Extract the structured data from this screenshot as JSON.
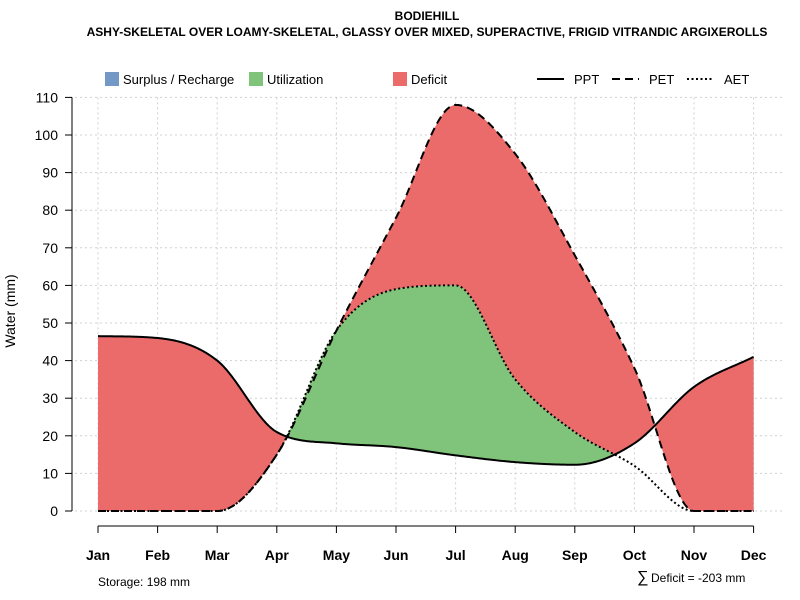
{
  "chart_data": {
    "type": "area",
    "title": "BODIEHILL",
    "subtitle": "ASHY-SKELETAL OVER LOAMY-SKELETAL, GLASSY OVER MIXED, SUPERACTIVE, FRIGID VITRANDIC ARGIXEROLLS",
    "ylabel": "Water (mm)",
    "xlabel": "",
    "ylim": [
      0,
      110
    ],
    "yticks": [
      0,
      10,
      20,
      30,
      40,
      50,
      60,
      70,
      80,
      90,
      100,
      110
    ],
    "grid": true,
    "categories": [
      "Jan",
      "Feb",
      "Mar",
      "Apr",
      "May",
      "Jun",
      "Jul",
      "Aug",
      "Sep",
      "Oct",
      "Nov",
      "Dec"
    ],
    "series": [
      {
        "name": "PPT",
        "line_style": "solid",
        "values": [
          46.5,
          46.0,
          40.0,
          21.0,
          18.0,
          17.0,
          14.8,
          13.0,
          12.3,
          18.0,
          33.0,
          41.0
        ]
      },
      {
        "name": "PET",
        "line_style": "dashed",
        "values": [
          0.0,
          0.0,
          0.0,
          15.0,
          48.0,
          78.0,
          108.0,
          95.0,
          68.0,
          38.0,
          0.0,
          0.0
        ]
      },
      {
        "name": "AET",
        "line_style": "dotted",
        "values": [
          0.0,
          0.0,
          0.0,
          15.0,
          48.0,
          59.0,
          60.0,
          35.0,
          21.0,
          12.0,
          0.0,
          0.0
        ]
      }
    ],
    "legend": [
      {
        "label": "Surplus / Recharge",
        "kind": "fill",
        "color": "#7498C6"
      },
      {
        "label": "Utilization",
        "kind": "fill",
        "color": "#7FC47A"
      },
      {
        "label": "Deficit",
        "kind": "fill",
        "color": "#EB6B6B"
      },
      {
        "label": "PPT",
        "kind": "line",
        "style": "solid"
      },
      {
        "label": "PET",
        "kind": "line",
        "style": "dashed"
      },
      {
        "label": "AET",
        "kind": "line",
        "style": "dotted"
      }
    ],
    "legend_position": "top",
    "annotations": {
      "storage": "Storage: 198 mm",
      "deficit_symbol": "∑",
      "deficit": "Deficit = -203 mm"
    }
  }
}
